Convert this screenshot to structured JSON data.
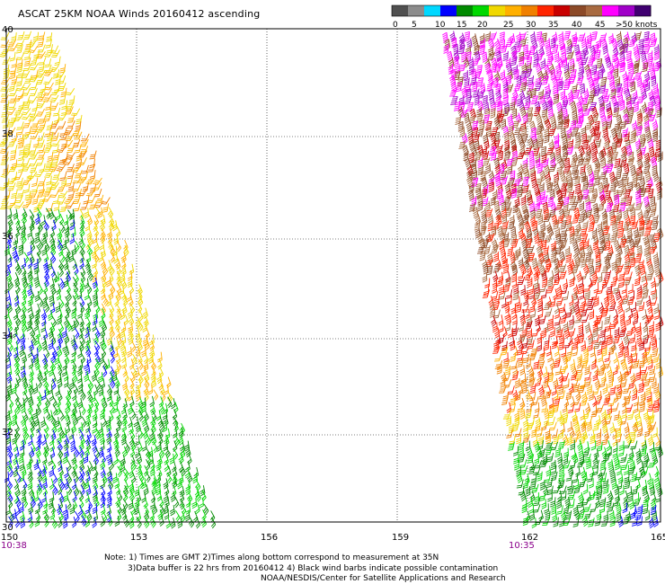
{
  "title": "ASCAT 25KM NOAA Winds 20160412 ascending",
  "legend": {
    "colors": [
      "#505050",
      "#8c8c8c",
      "#00d8ff",
      "#0000ff",
      "#008a00",
      "#00d800",
      "#f0d800",
      "#ffb000",
      "#f08000",
      "#ff2400",
      "#c80000",
      "#8c4a28",
      "#a86a40",
      "#ff00ff",
      "#a000c8",
      "#400070"
    ],
    "labels": [
      "0",
      "5",
      "10",
      "15",
      "20",
      "25",
      "30",
      "35",
      "40",
      "45",
      ">50 knots"
    ]
  },
  "axes": {
    "lon_ticks": [
      "150",
      "153",
      "156",
      "159",
      "162",
      "165"
    ],
    "lat_ticks": [
      "40",
      "38",
      "36",
      "34",
      "32",
      "30"
    ]
  },
  "time_labels": {
    "left": "10:38",
    "right": "10:35",
    "color": "#8b008b"
  },
  "notes": {
    "line1": "Note: 1) Times are GMT 2)Times along bottom correspond to measurement at 35N",
    "line2": "3)Data buffer is 22 hrs from 20160412 4) Black wind barbs indicate possible contamination",
    "line3": "NOAA/NESDIS/Center for Satellite Applications and Research"
  }
}
